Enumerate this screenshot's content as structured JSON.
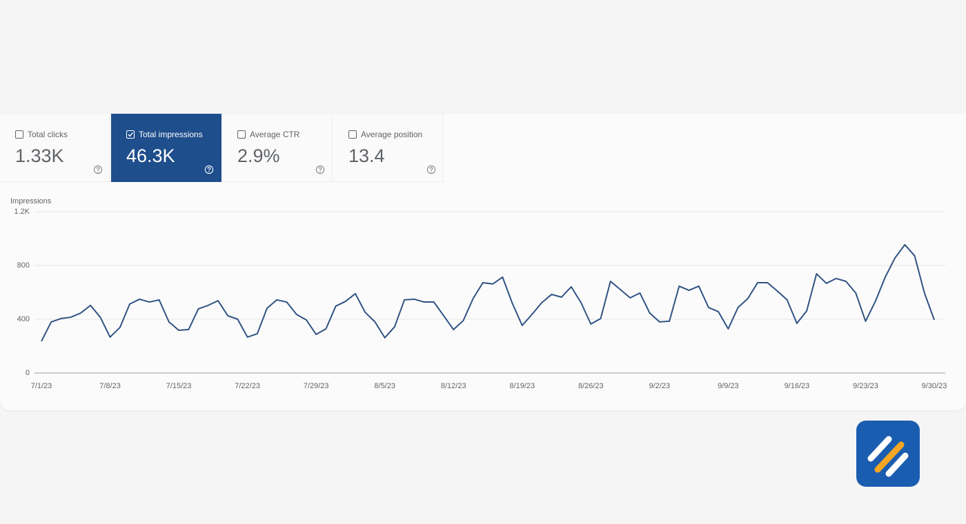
{
  "metrics": [
    {
      "label": "Total clicks",
      "value": "1.33K",
      "selected": false
    },
    {
      "label": "Total impressions",
      "value": "46.3K",
      "selected": true
    },
    {
      "label": "Average CTR",
      "value": "2.9%",
      "selected": false
    },
    {
      "label": "Average position",
      "value": "13.4",
      "selected": false
    }
  ],
  "chart_data": {
    "type": "line",
    "y_label": "Impressions",
    "color": "#2f5283",
    "categories": [
      "7/1/23",
      null,
      null,
      null,
      null,
      null,
      null,
      "7/8/23",
      null,
      null,
      null,
      null,
      null,
      null,
      "7/15/23",
      null,
      null,
      null,
      null,
      null,
      null,
      "7/22/23",
      null,
      null,
      null,
      null,
      null,
      null,
      "7/29/23",
      null,
      null,
      null,
      null,
      null,
      null,
      "8/5/23",
      null,
      null,
      null,
      null,
      null,
      null,
      "8/12/23",
      null,
      null,
      null,
      null,
      null,
      null,
      "8/19/23",
      null,
      null,
      null,
      null,
      null,
      null,
      "8/26/23",
      null,
      null,
      null,
      null,
      null,
      null,
      "9/2/23",
      null,
      null,
      null,
      null,
      null,
      null,
      "9/9/23",
      null,
      null,
      null,
      null,
      null,
      null,
      "9/16/23",
      null,
      null,
      null,
      null,
      null,
      null,
      "9/23/23",
      null,
      null,
      null,
      null,
      null,
      null,
      "9/30/23"
    ],
    "values": [
      236,
      380,
      405,
      415,
      446,
      503,
      415,
      267,
      338,
      513,
      549,
      528,
      544,
      380,
      318,
      323,
      477,
      503,
      538,
      426,
      400,
      267,
      292,
      482,
      544,
      528,
      436,
      395,
      287,
      328,
      497,
      533,
      590,
      451,
      380,
      262,
      344,
      544,
      549,
      528,
      528,
      426,
      323,
      390,
      554,
      672,
      662,
      713,
      518,
      354,
      436,
      523,
      585,
      564,
      641,
      523,
      364,
      405,
      682,
      621,
      559,
      595,
      446,
      380,
      385,
      646,
      615,
      646,
      487,
      456,
      328,
      487,
      554,
      672,
      672,
      610,
      544,
      369,
      462,
      738,
      667,
      703,
      682,
      595,
      385,
      533,
      713,
      856,
      954,
      872,
      595,
      395
    ],
    "ylim": [
      0,
      1200
    ],
    "yticks": [
      0,
      400,
      800,
      {
        "value": 1200,
        "label": "1.2K"
      }
    ],
    "grid": true
  }
}
